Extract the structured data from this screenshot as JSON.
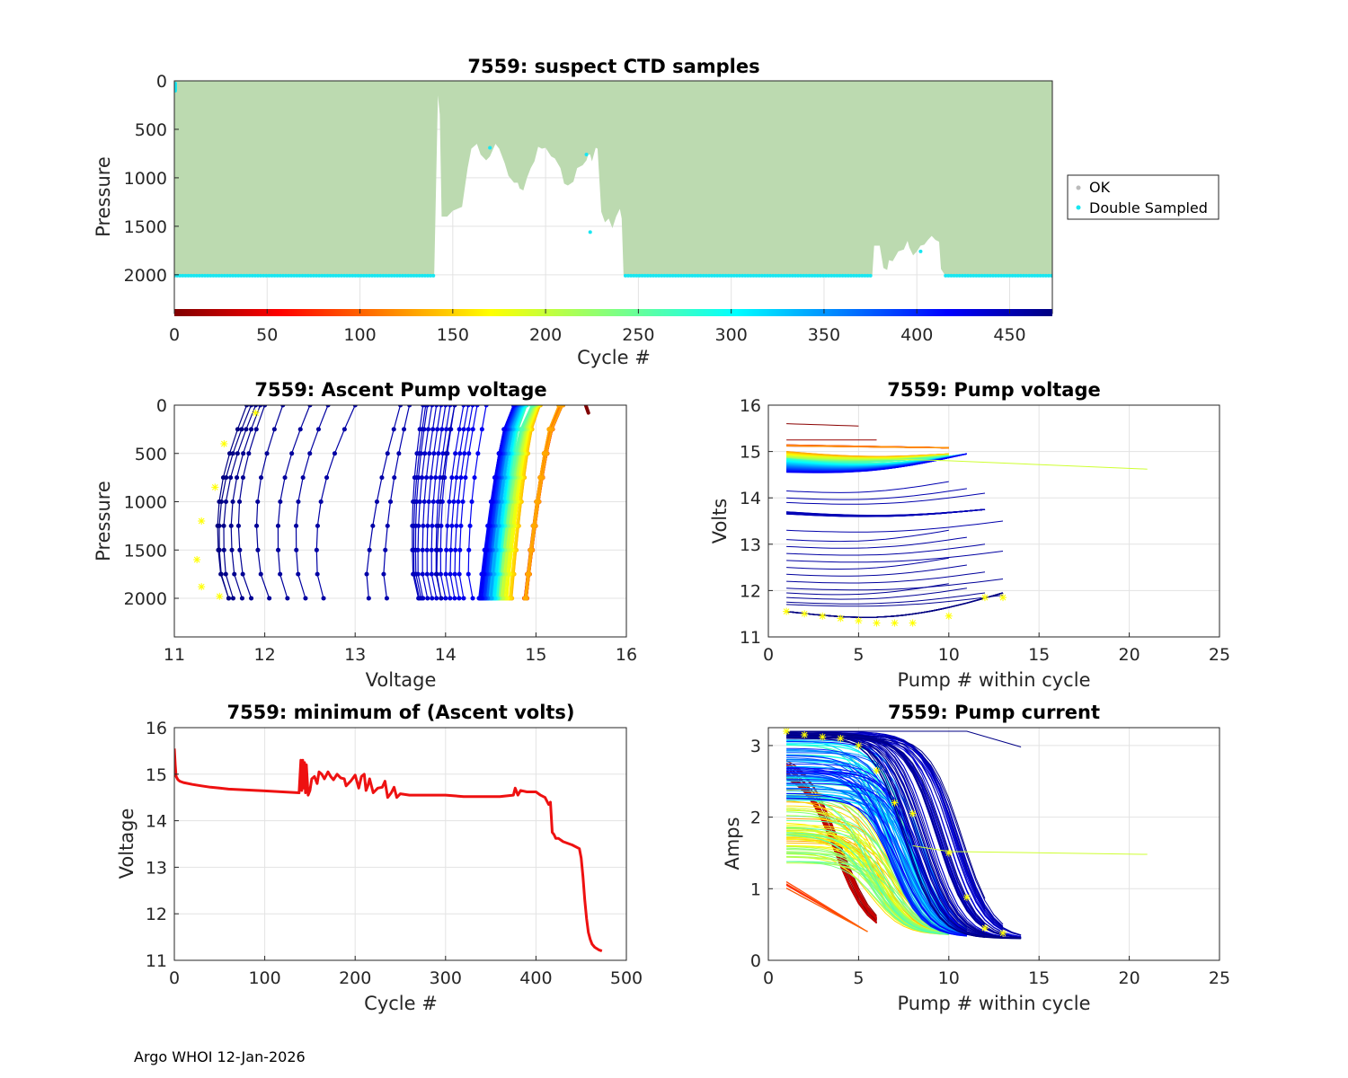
{
  "footer": "Argo WHOI 12-Jan-2026",
  "colors": {
    "ok_fill": "#bcdab0",
    "double_sampled": "#19e6f0",
    "min_volts_line": "#ee1111",
    "start_marker": "#ffff00"
  },
  "chart_data": [
    {
      "id": "suspect",
      "type": "area",
      "title": "7559: suspect CTD samples",
      "xlabel": "Cycle #",
      "ylabel": "Pressure",
      "xlim": [
        0,
        473
      ],
      "ylim": [
        0,
        2400
      ],
      "y_reversed": true,
      "xticks": [
        "0",
        "50",
        "100",
        "150",
        "200",
        "250",
        "300",
        "350",
        "400",
        "450"
      ],
      "yticks": [
        "0",
        "500",
        "1000",
        "1500",
        "2000"
      ],
      "colorbar": "jet_reversed",
      "legend": {
        "position": "outside-right",
        "entries": [
          {
            "label": "OK",
            "color": "#bbbbbb"
          },
          {
            "label": "Double Sampled",
            "color": "#19e6f0"
          }
        ]
      },
      "profile_bottom": [
        [
          0,
          2000
        ],
        [
          140,
          2000
        ],
        [
          142,
          150
        ],
        [
          143,
          350
        ],
        [
          144,
          1400
        ],
        [
          147,
          1400
        ],
        [
          150,
          1340
        ],
        [
          155,
          1300
        ],
        [
          158,
          900
        ],
        [
          160,
          700
        ],
        [
          163,
          650
        ],
        [
          165,
          760
        ],
        [
          168,
          820
        ],
        [
          170,
          780
        ],
        [
          173,
          650
        ],
        [
          175,
          700
        ],
        [
          178,
          850
        ],
        [
          180,
          980
        ],
        [
          183,
          1050
        ],
        [
          185,
          1050
        ],
        [
          186,
          1110
        ],
        [
          188,
          1130
        ],
        [
          190,
          1000
        ],
        [
          192,
          900
        ],
        [
          194,
          830
        ],
        [
          196,
          680
        ],
        [
          198,
          700
        ],
        [
          200,
          690
        ],
        [
          203,
          780
        ],
        [
          205,
          800
        ],
        [
          208,
          900
        ],
        [
          210,
          1060
        ],
        [
          212,
          1080
        ],
        [
          215,
          1040
        ],
        [
          217,
          900
        ],
        [
          220,
          870
        ],
        [
          222,
          820
        ],
        [
          223,
          760
        ],
        [
          224,
          760
        ],
        [
          225,
          830
        ],
        [
          226,
          760
        ],
        [
          227,
          690
        ],
        [
          228,
          700
        ],
        [
          230,
          1350
        ],
        [
          232,
          1460
        ],
        [
          234,
          1420
        ],
        [
          236,
          1520
        ],
        [
          238,
          1400
        ],
        [
          240,
          1320
        ],
        [
          241,
          1420
        ],
        [
          242,
          2000
        ],
        [
          376,
          2000
        ],
        [
          377,
          1700
        ],
        [
          380,
          1700
        ],
        [
          382,
          1930
        ],
        [
          384,
          1950
        ],
        [
          385,
          1850
        ],
        [
          387,
          1860
        ],
        [
          390,
          1760
        ],
        [
          393,
          1740
        ],
        [
          395,
          1650
        ],
        [
          396,
          1720
        ],
        [
          398,
          1800
        ],
        [
          400,
          1760
        ],
        [
          402,
          1700
        ],
        [
          404,
          1690
        ],
        [
          406,
          1640
        ],
        [
          408,
          1600
        ],
        [
          410,
          1640
        ],
        [
          412,
          1660
        ],
        [
          413,
          1940
        ],
        [
          415,
          2000
        ],
        [
          473,
          2000
        ]
      ]
    },
    {
      "id": "ascent",
      "type": "line",
      "title": "7559: Ascent Pump voltage",
      "xlabel": "Voltage",
      "ylabel": "Pressure",
      "xlim": [
        11,
        16
      ],
      "ylim": [
        0,
        2400
      ],
      "y_reversed": true,
      "xticks": [
        "11",
        "12",
        "13",
        "14",
        "15",
        "16"
      ],
      "yticks": [
        "0",
        "500",
        "1000",
        "1500",
        "2000"
      ],
      "groups": [
        {
          "cycles": [
            0,
            140
          ],
          "v_bottom": [
            14.9,
            14.9
          ],
          "v_top": [
            15.2,
            15.3
          ]
        },
        {
          "cycles": [
            140,
            260
          ],
          "v_bottom": [
            14.75,
            14.55
          ],
          "v_top": [
            15.1,
            14.95
          ]
        },
        {
          "cycles": [
            260,
            420
          ],
          "v_bottom": [
            14.6,
            14.4
          ],
          "v_top": [
            14.9,
            14.75
          ]
        },
        {
          "cycles": [
            420,
            450
          ],
          "v_bottom": [
            13.9,
            13.35
          ],
          "v_top": [
            14.4,
            13.6
          ]
        },
        {
          "cycles": [
            450,
            473
          ],
          "v_bottom": [
            12.8,
            11.3
          ],
          "v_top": [
            14.1,
            11.9
          ]
        }
      ]
    },
    {
      "id": "pumpv",
      "type": "line",
      "title": "7559: Pump voltage",
      "xlabel": "Pump # within cycle",
      "ylabel": "Volts",
      "xlim": [
        0,
        25
      ],
      "ylim": [
        11,
        16
      ],
      "xticks": [
        "0",
        "5",
        "10",
        "15",
        "20",
        "25"
      ],
      "yticks": [
        "11",
        "12",
        "13",
        "14",
        "15",
        "16"
      ],
      "bands": [
        {
          "name": "early",
          "start": 15.1,
          "end": 15.05,
          "pumps": 10
        },
        {
          "name": "mid",
          "start": 14.9,
          "end": 14.85,
          "pumps": 10
        },
        {
          "name": "late",
          "start": 14.6,
          "end": 14.9,
          "pumps": 11
        },
        {
          "name": "low",
          "start": 13.6,
          "end": 13.7,
          "pumps": 12
        },
        {
          "name": "end",
          "start": 11.5,
          "end": 11.9,
          "pumps": 13
        }
      ],
      "outlier": {
        "pumps": 21,
        "start": 14.9,
        "end": 14.62
      }
    },
    {
      "id": "minvolts",
      "type": "line",
      "title": "7559: minimum of (Ascent volts)",
      "xlabel": "Cycle #",
      "ylabel": "Voltage",
      "xlim": [
        0,
        500
      ],
      "ylim": [
        11,
        16
      ],
      "xticks": [
        "0",
        "100",
        "200",
        "300",
        "400",
        "500"
      ],
      "yticks": [
        "11",
        "12",
        "13",
        "14",
        "15",
        "16"
      ],
      "x": [
        0,
        1,
        2,
        4,
        6,
        10,
        20,
        30,
        40,
        50,
        60,
        80,
        100,
        120,
        138,
        140,
        141,
        142,
        143,
        144,
        145,
        146,
        148,
        150,
        152,
        155,
        158,
        160,
        163,
        166,
        170,
        173,
        176,
        180,
        184,
        188,
        190,
        195,
        200,
        204,
        207,
        210,
        212,
        214,
        216,
        220,
        225,
        230,
        233,
        236,
        240,
        243,
        246,
        250,
        260,
        280,
        300,
        320,
        340,
        360,
        375,
        377,
        380,
        383,
        390,
        400,
        405,
        410,
        414,
        416,
        418,
        420,
        422,
        425,
        430,
        440,
        448,
        450,
        452,
        454,
        456,
        458,
        460,
        462,
        465,
        470,
        473
      ],
      "y": [
        15.55,
        15.2,
        14.95,
        14.88,
        14.85,
        14.82,
        14.78,
        14.75,
        14.72,
        14.7,
        14.68,
        14.66,
        14.64,
        14.62,
        14.6,
        15.3,
        14.65,
        15.3,
        14.7,
        15.25,
        14.6,
        15.2,
        14.55,
        14.65,
        14.9,
        14.95,
        14.8,
        15.05,
        15.0,
        14.9,
        15.05,
        14.95,
        14.88,
        15.0,
        14.92,
        14.9,
        14.75,
        14.85,
        14.98,
        14.7,
        14.95,
        15.0,
        14.65,
        14.75,
        14.9,
        14.6,
        14.7,
        14.72,
        14.85,
        14.5,
        14.6,
        14.72,
        14.5,
        14.58,
        14.55,
        14.55,
        14.55,
        14.52,
        14.52,
        14.52,
        14.55,
        14.7,
        14.55,
        14.65,
        14.62,
        14.62,
        14.55,
        14.5,
        14.35,
        14.4,
        13.75,
        13.7,
        13.62,
        13.62,
        13.55,
        13.48,
        13.4,
        13.2,
        12.8,
        12.3,
        11.9,
        11.6,
        11.45,
        11.35,
        11.28,
        11.22,
        11.2
      ]
    },
    {
      "id": "pumpc",
      "type": "line",
      "title": "7559: Pump current",
      "xlabel": "Pump # within cycle",
      "ylabel": "Amps",
      "xlim": [
        0,
        25
      ],
      "ylim": [
        0,
        3.25
      ],
      "xticks": [
        "0",
        "5",
        "10",
        "15",
        "20",
        "25"
      ],
      "yticks": [
        "0",
        "1",
        "2",
        "3"
      ],
      "outlier": {
        "pumps": 21,
        "start": 1.52,
        "end": 1.48
      },
      "top_trace": {
        "pumps": 14,
        "start": 3.2,
        "end": 2.98
      }
    }
  ]
}
